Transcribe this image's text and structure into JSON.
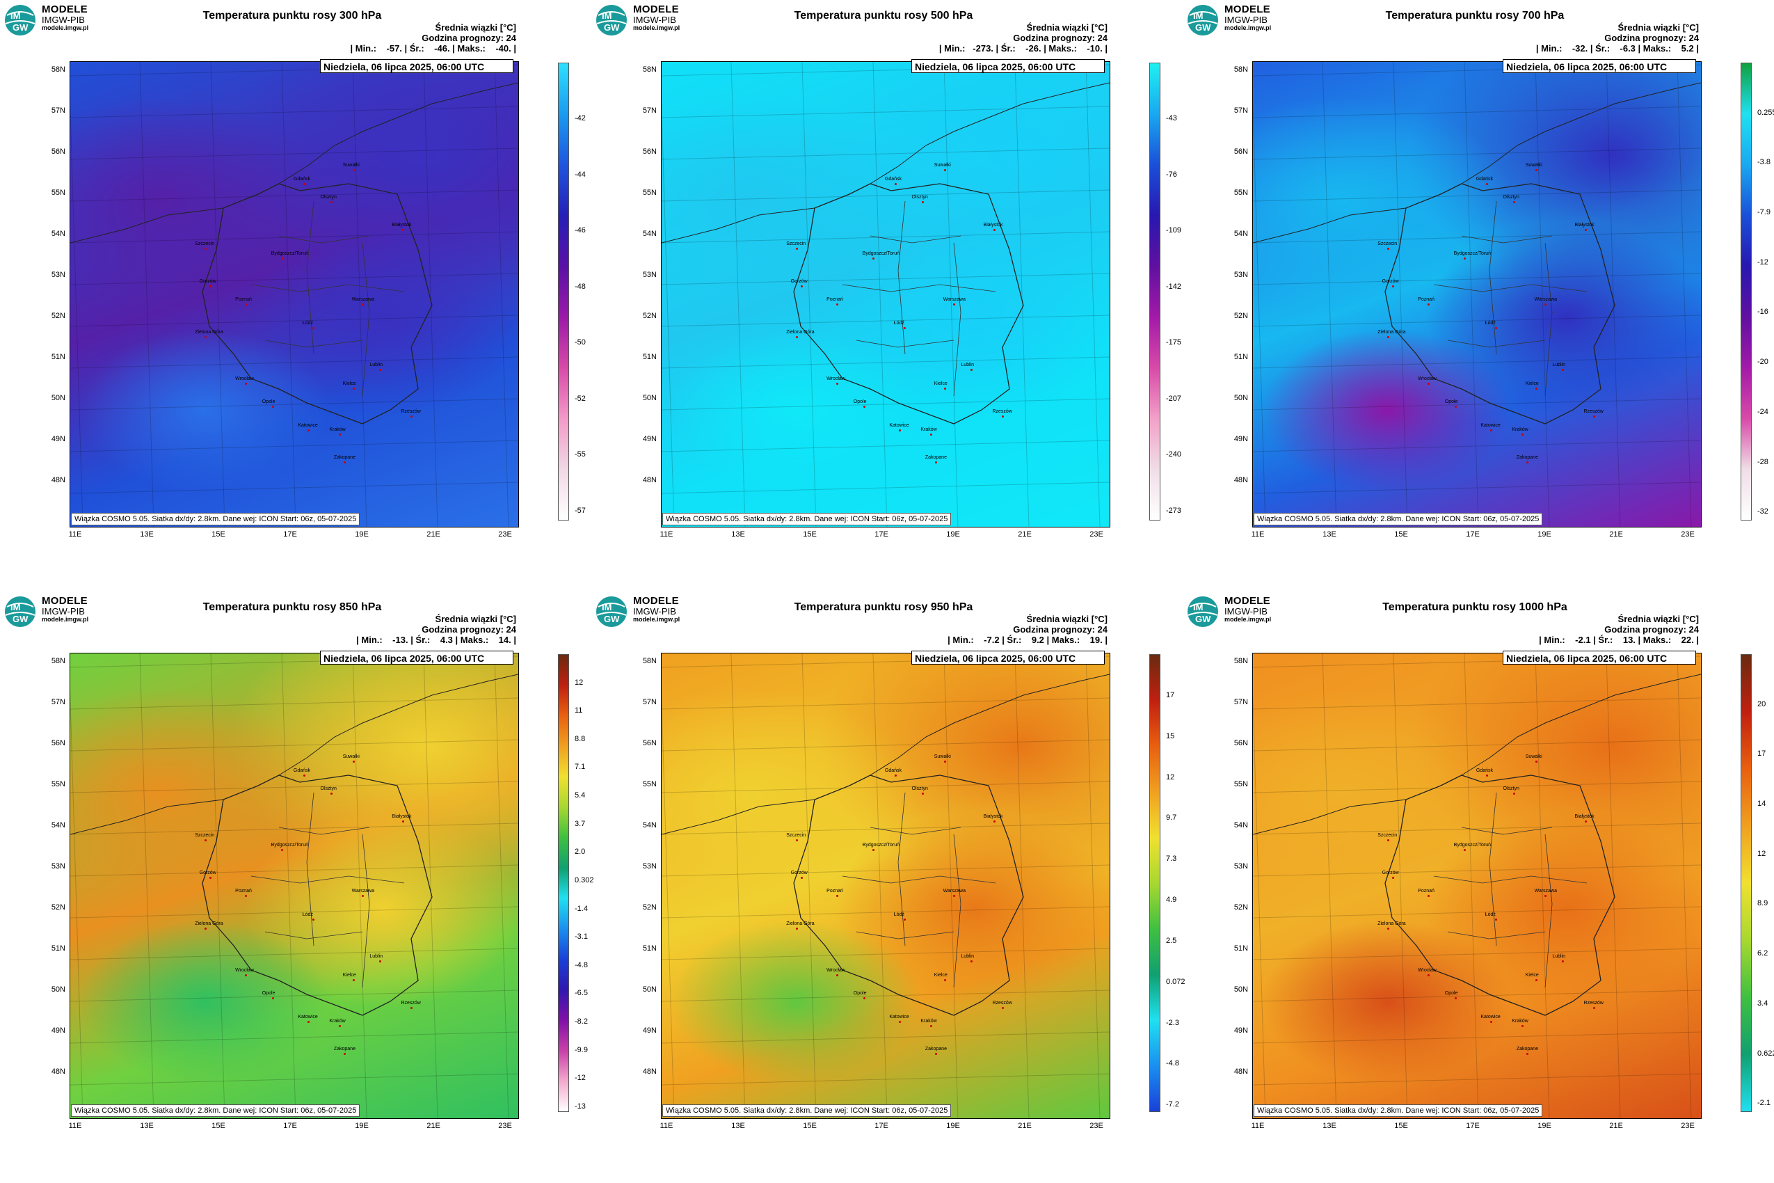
{
  "brand": {
    "name": "MODELE",
    "org": "IMGW-PIB",
    "url": "modele.imgw.pl",
    "logo_text_top": "IM",
    "logo_text_bottom": "GW"
  },
  "common": {
    "subtitle": "Średnia wiązki [°C]",
    "forecast": "Godzina prognozy: 24",
    "date": "Niedziela, 06 lipca 2025, 06:00 UTC",
    "footer": "Wiązka COSMO 5.05. Siatka dx/dy: 2.8km. Dane wej: ICON Start: 06z, 05-07-2025",
    "lat_labels": [
      "58N",
      "57N",
      "56N",
      "55N",
      "54N",
      "53N",
      "52N",
      "51N",
      "50N",
      "49N",
      "48N"
    ],
    "lon_labels": [
      "11E",
      "13E",
      "15E",
      "17E",
      "19E",
      "21E",
      "23E"
    ],
    "cities": [
      "Gdańsk",
      "Suwałki",
      "Olsztyn",
      "Szczecin",
      "Białystok",
      "Bydgoszcz/Toruń",
      "Gorzów",
      "Poznań",
      "Warszawa",
      "Zielona Góra",
      "Łódź",
      "Lublin",
      "Wrocław",
      "Kielce",
      "Opole",
      "Rzeszów",
      "Katowice",
      "Kraków",
      "Zakopane"
    ]
  },
  "panels": [
    {
      "title": "Temperatura punktu rosy 300 hPa",
      "stats": "| Min.:    -57. | Śr.:    -46. | Maks.:    -40. |",
      "cbar_ticks": [
        "-42",
        "-44",
        "-46",
        "-48",
        "-50",
        "-52",
        "-55",
        "-57"
      ],
      "cbar_colors": [
        "#2fe0ff",
        "#1a9bf0",
        "#1f55e0",
        "#2520b8",
        "#5a10a8",
        "#9a1aa8",
        "#d84aa8",
        "#f29ac8",
        "#f0d8e4",
        "#ffffff"
      ],
      "map_colors": [
        "#2050d8",
        "#3a30c0",
        "#5520a8",
        "#2a70e8"
      ]
    },
    {
      "title": "Temperatura punktu rosy 500 hPa",
      "stats": "| Min.:   -273. | Śr.:    -26. | Maks.:    -10. |",
      "cbar_ticks": [
        "-43",
        "-76",
        "-109",
        "-142",
        "-175",
        "-207",
        "-240",
        "-273"
      ],
      "cbar_colors": [
        "#1ff0f0",
        "#1aa8f0",
        "#1a50d8",
        "#2818b0",
        "#6010a0",
        "#a21aa8",
        "#d84aa8",
        "#f2a0c8",
        "#f0dde6",
        "#ffffff"
      ],
      "map_colors": [
        "#10e0f8",
        "#18d0f8",
        "#20c8f0",
        "#10e8f8"
      ]
    },
    {
      "title": "Temperatura punktu rosy 700 hPa",
      "stats": "| Min.:    -32. | Śr.:    -6.3 | Maks.:    5.2 |",
      "cbar_ticks": [
        "0.255",
        "-3.8",
        "-7.9",
        "-12",
        "-16",
        "-20",
        "-24",
        "-28",
        "-32"
      ],
      "cbar_colors": [
        "#10a040",
        "#20e0f0",
        "#1aa8f0",
        "#1a50d8",
        "#2818b0",
        "#6010a0",
        "#a21aa8",
        "#d84aa8",
        "#f0dde6",
        "#ffffff"
      ],
      "map_colors": [
        "#2060e0",
        "#3030c0",
        "#18b8f0",
        "#8a18a8"
      ]
    },
    {
      "title": "Temperatura punktu rosy 850 hPa",
      "stats": "| Min.:    -13. | Śr.:    4.3 | Maks.:    14. |",
      "cbar_ticks": [
        "12",
        "11",
        "8.8",
        "7.1",
        "5.4",
        "3.7",
        "2.0",
        "0.302",
        "-1.4",
        "-3.1",
        "-4.8",
        "-6.5",
        "-8.2",
        "-9.9",
        "-12",
        "-13"
      ],
      "cbar_colors": [
        "#6a2a10",
        "#c02010",
        "#e86010",
        "#f0a020",
        "#f0e030",
        "#a8d830",
        "#40c040",
        "#10a070",
        "#20e0f0",
        "#1a90f0",
        "#1a40d8",
        "#3018b0",
        "#8010a8",
        "#c840a8",
        "#f2a8cc",
        "#ffffff"
      ],
      "map_colors": [
        "#70d040",
        "#f0d030",
        "#e89020",
        "#30c060"
      ]
    },
    {
      "title": "Temperatura punktu rosy 950 hPa",
      "stats": "| Min.:    -7.2 | Śr.:    9.2 | Maks.:    19. |",
      "cbar_ticks": [
        "17",
        "15",
        "12",
        "9.7",
        "7.3",
        "4.9",
        "2.5",
        "0.072",
        "-2.3",
        "-4.8",
        "-7.2"
      ],
      "cbar_colors": [
        "#6a2a10",
        "#c02010",
        "#e86010",
        "#f0a020",
        "#f0e030",
        "#a8d830",
        "#40c040",
        "#10a070",
        "#20e0f0",
        "#1a90f0",
        "#1a40d8"
      ],
      "map_colors": [
        "#f0a020",
        "#e87818",
        "#f0d030",
        "#60c840"
      ]
    },
    {
      "title": "Temperatura punktu rosy 1000 hPa",
      "stats": "| Min.:    -2.1 | Śr.:    13. | Maks.:    22. |",
      "cbar_ticks": [
        "20",
        "17",
        "14",
        "12",
        "8.9",
        "6.2",
        "3.4",
        "0.622",
        "-2.1"
      ],
      "cbar_colors": [
        "#6a2a10",
        "#c02010",
        "#e86010",
        "#f0a020",
        "#f0e030",
        "#a8d830",
        "#40c040",
        "#10a070",
        "#20e0f0"
      ],
      "map_colors": [
        "#f09020",
        "#e87018",
        "#f0b028",
        "#d85018"
      ]
    }
  ]
}
